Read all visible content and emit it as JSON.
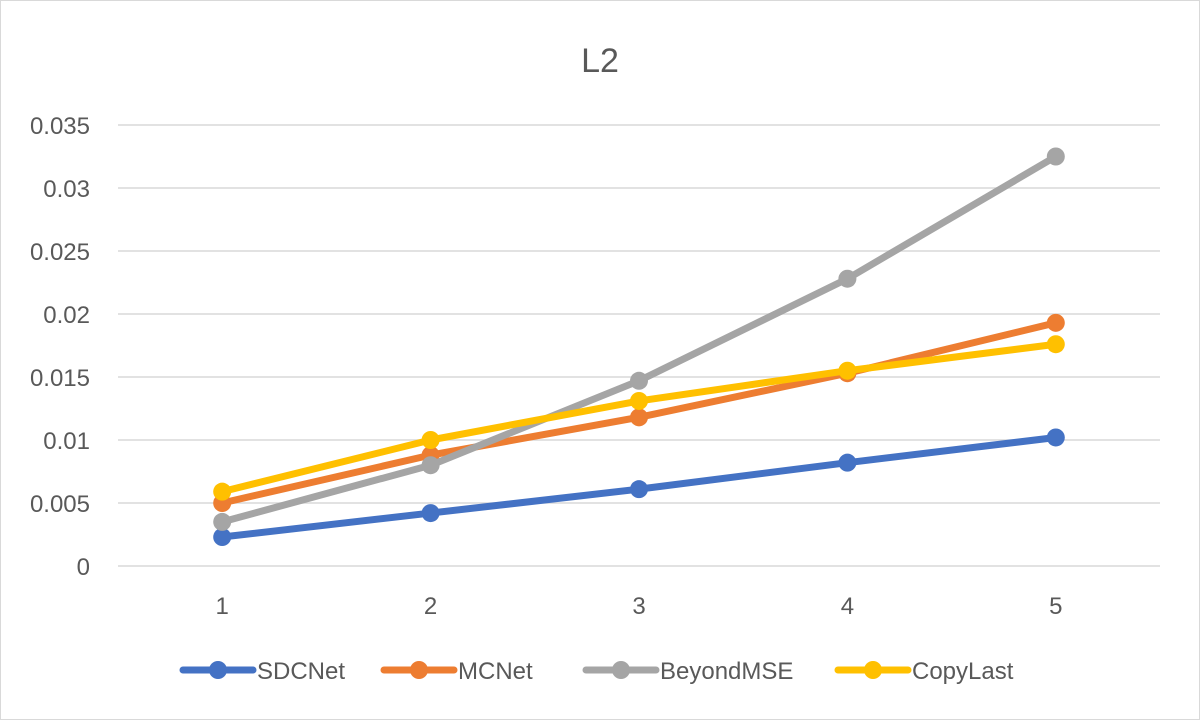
{
  "chart_data": {
    "type": "line",
    "title": "L2",
    "xlabel": "",
    "ylabel": "",
    "categories": [
      "1",
      "2",
      "3",
      "4",
      "5"
    ],
    "ylim": [
      0,
      0.035
    ],
    "yticks": [
      "0",
      "0.005",
      "0.01",
      "0.015",
      "0.02",
      "0.025",
      "0.03",
      "0.035"
    ],
    "grid": true,
    "legend_position": "bottom",
    "series": [
      {
        "name": "SDCNet",
        "color": "#4472C4",
        "values": [
          0.0023,
          0.0042,
          0.0061,
          0.0082,
          0.0102
        ]
      },
      {
        "name": "MCNet",
        "color": "#ED7D31",
        "values": [
          0.005,
          0.0088,
          0.0118,
          0.0153,
          0.0193
        ]
      },
      {
        "name": "BeyondMSE",
        "color": "#A5A5A5",
        "values": [
          0.0035,
          0.008,
          0.0147,
          0.0228,
          0.0325
        ]
      },
      {
        "name": "CopyLast",
        "color": "#FFC000",
        "values": [
          0.0059,
          0.01,
          0.0131,
          0.0155,
          0.0176
        ]
      }
    ]
  }
}
